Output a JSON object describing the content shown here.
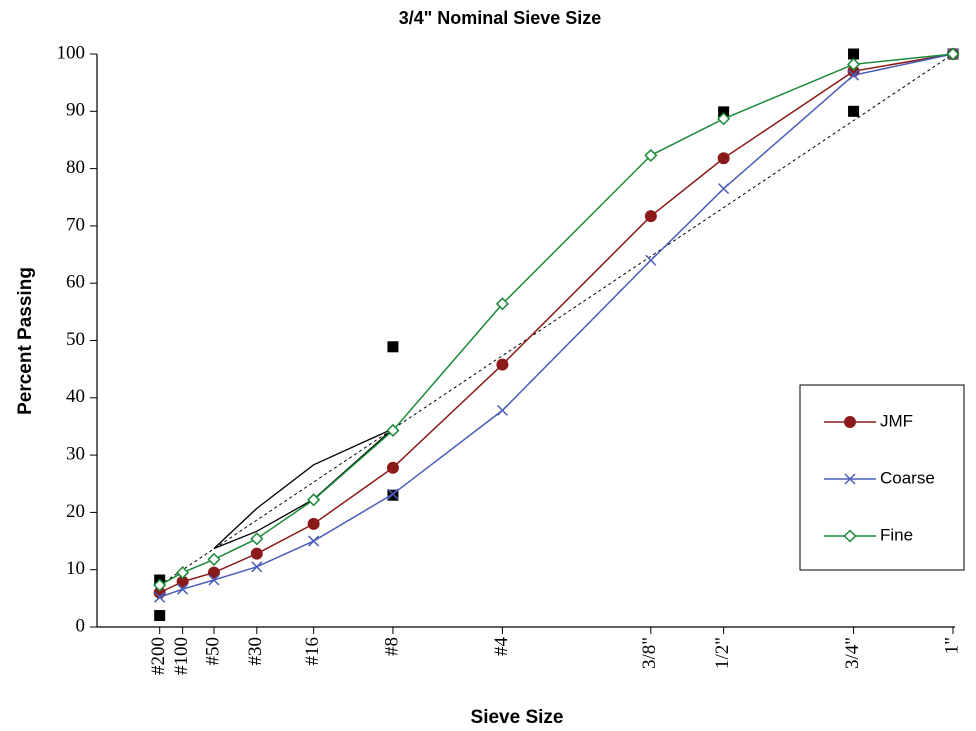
{
  "chart_data": {
    "type": "line",
    "title": "3/4\" Nominal Sieve Size",
    "x_label": "Sieve Size",
    "y_label": "Percent Passing",
    "xscale": "power",
    "xpower": 0.45,
    "xlim": [
      0,
      25
    ],
    "xticks": [
      {
        "value": 0.075,
        "label": "#200"
      },
      {
        "value": 0.15,
        "label": "#100"
      },
      {
        "value": 0.3,
        "label": "#50"
      },
      {
        "value": 0.6,
        "label": "#30"
      },
      {
        "value": 1.18,
        "label": "#16"
      },
      {
        "value": 2.36,
        "label": "#8"
      },
      {
        "value": 4.75,
        "label": "#4"
      },
      {
        "value": 9.5,
        "label": "3/8\""
      },
      {
        "value": 12.5,
        "label": "1/2\""
      },
      {
        "value": 19,
        "label": "3/4\""
      },
      {
        "value": 25,
        "label": "1\""
      }
    ],
    "ylim": [
      0,
      100
    ],
    "yticks": [
      0,
      10,
      20,
      30,
      40,
      50,
      60,
      70,
      80,
      90,
      100
    ],
    "legend": "lower-right",
    "x": [
      0.075,
      0.15,
      0.3,
      0.6,
      1.18,
      2.36,
      4.75,
      9.5,
      12.5,
      19,
      25
    ],
    "series": [
      {
        "name": "JMF",
        "color": "#8b1a1a",
        "marker": "circle",
        "values": [
          6,
          7.9,
          9.5,
          12.8,
          18,
          27.8,
          45.8,
          71.7,
          81.8,
          97,
          100
        ]
      },
      {
        "name": "Coarse",
        "color": "#4a5db8",
        "marker": "x",
        "values": [
          5.2,
          6.6,
          8.2,
          10.5,
          15,
          23.2,
          37.8,
          64,
          76.5,
          96.3,
          100
        ]
      },
      {
        "name": "Fine",
        "color": "#1a8a3a",
        "marker": "diamond",
        "values": [
          7.3,
          9.5,
          11.8,
          15.4,
          22.2,
          34.3,
          56.4,
          82.3,
          88.7,
          98.2,
          100
        ]
      }
    ],
    "control_points": {
      "x": [
        0.075,
        0.075,
        2.36,
        2.36,
        12.5,
        19,
        19,
        25
      ],
      "values": [
        2,
        8.2,
        23,
        48.9,
        89.9,
        100,
        90,
        100
      ],
      "color": "#000000"
    },
    "max_density_line": {
      "x": [
        0.075,
        25
      ],
      "values": [
        7.3,
        100
      ],
      "color": "#000000"
    },
    "restricted_zone": {
      "upper": {
        "x": [
          0.3,
          0.6,
          1.18,
          2.36
        ],
        "values": [
          13.7,
          20.7,
          28.3,
          34.6
        ]
      },
      "lower": {
        "x": [
          0.3,
          0.6,
          1.18,
          2.36
        ],
        "values": [
          13.7,
          16.7,
          22.3,
          34.6
        ]
      },
      "color": "#000000"
    }
  }
}
